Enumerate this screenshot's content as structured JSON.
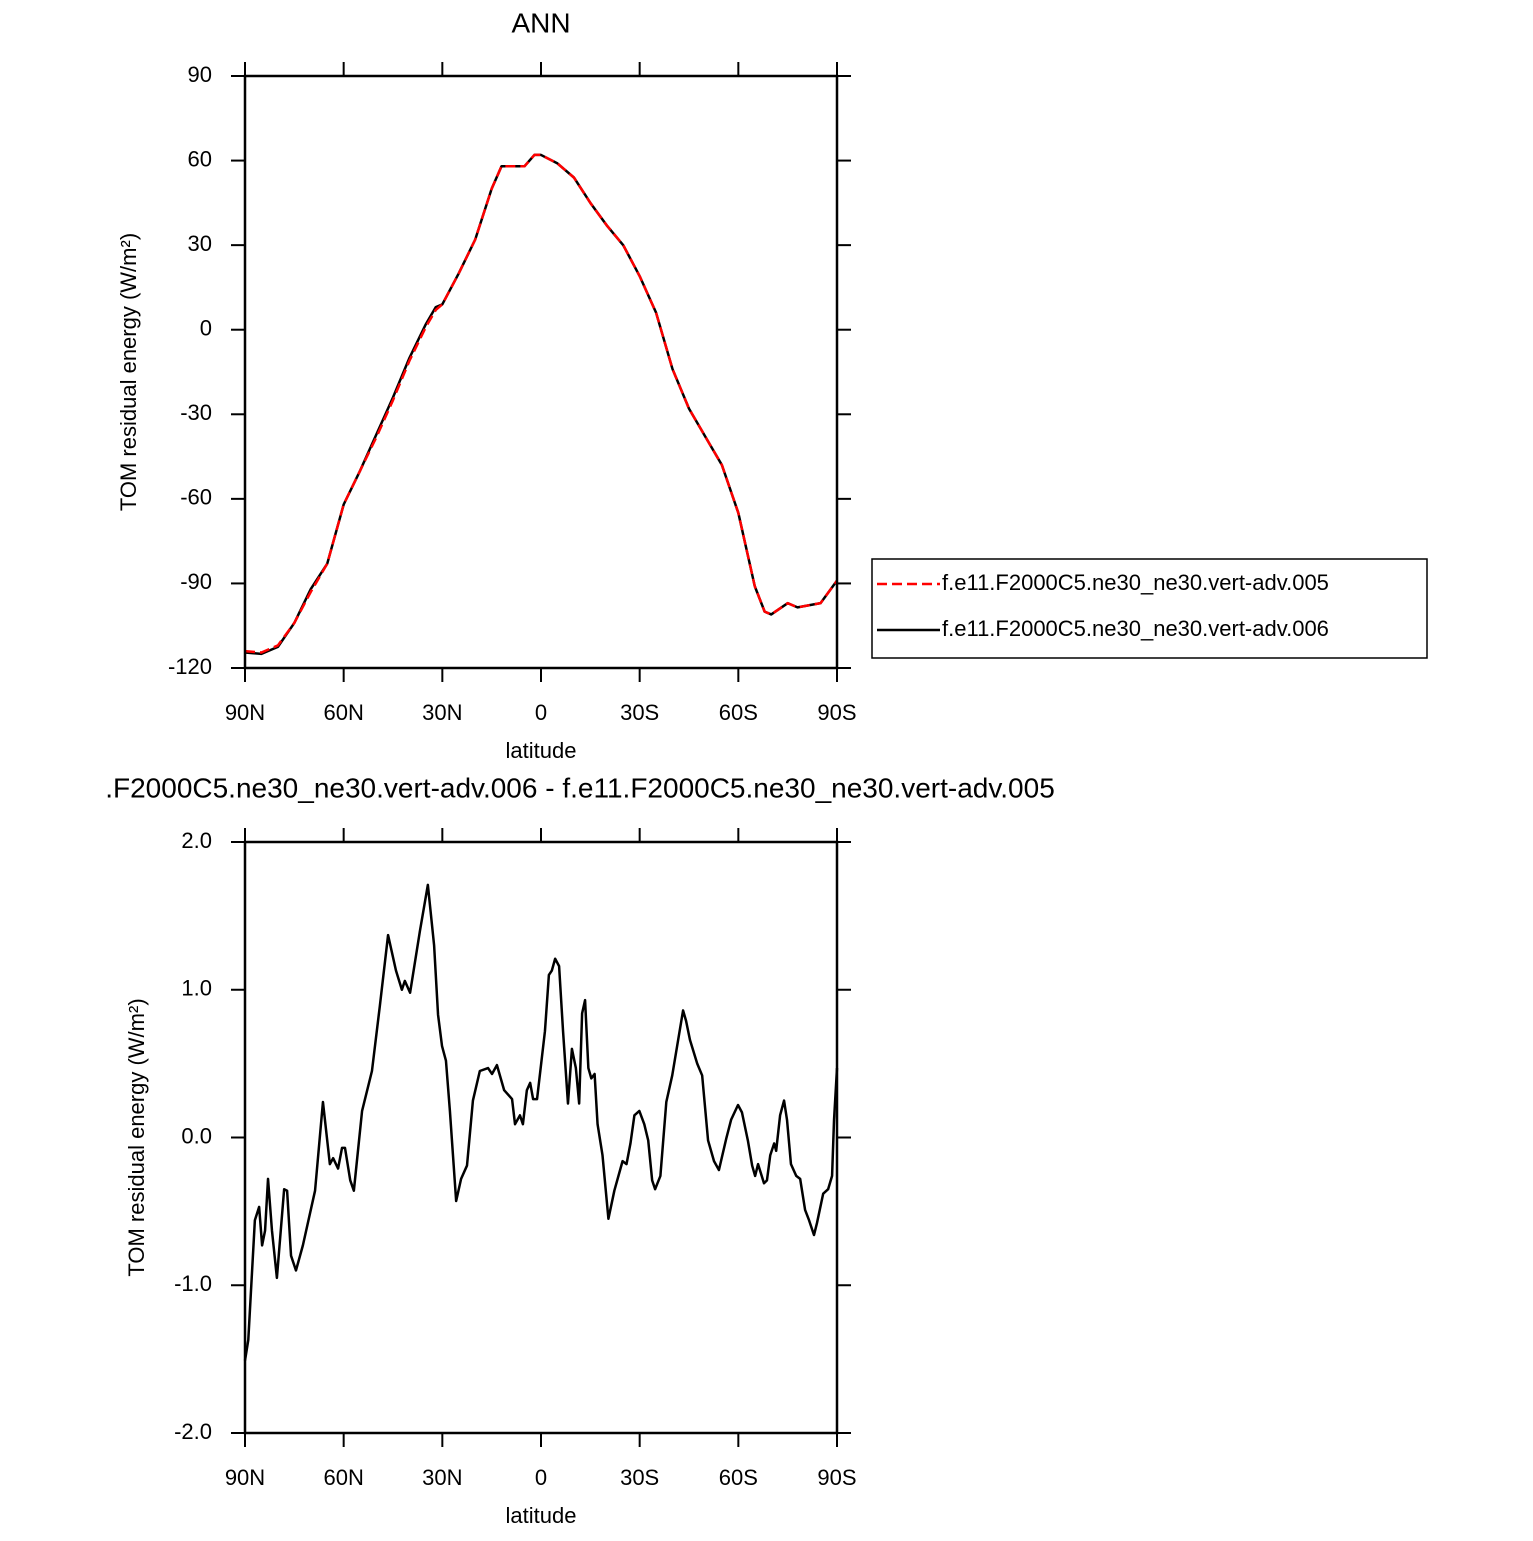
{
  "chart_data": [
    {
      "type": "line",
      "title": "ANN",
      "xlabel": "latitude",
      "ylabel": "TOM residual energy (W/m²)",
      "xlim": [
        90,
        -90
      ],
      "xticks": [
        {
          "value": 90,
          "label": "90N"
        },
        {
          "value": 60,
          "label": "60N"
        },
        {
          "value": 30,
          "label": "30N"
        },
        0,
        {
          "value": -30,
          "label": "30S"
        },
        {
          "value": -60,
          "label": "60S"
        },
        {
          "value": -90,
          "label": "90S"
        }
      ],
      "ylim": [
        -120,
        90
      ],
      "yticks": [
        90,
        60,
        30,
        0,
        -30,
        -60,
        -90,
        -120
      ],
      "legend": "right",
      "x": [
        90,
        85,
        80,
        75,
        70,
        65,
        60,
        55,
        50,
        45,
        40,
        35,
        32,
        30,
        25,
        20,
        15,
        12,
        10,
        5,
        2,
        0,
        -5,
        -10,
        -15,
        -20,
        -25,
        -30,
        -35,
        -40,
        -45,
        -50,
        -55,
        -60,
        -65,
        -68,
        -70,
        -75,
        -78,
        -85,
        -90
      ],
      "series": [
        {
          "name": "f.e11.F2000C5.ne30_ne30.vert-adv.005",
          "color": "#ff0000",
          "dash": "dashed",
          "values": [
            -114,
            -114.5,
            -112,
            -104,
            -93,
            -83,
            -62,
            -50,
            -38,
            -25,
            -11,
            1,
            7,
            9,
            20,
            32,
            50,
            58,
            58,
            58,
            62,
            62,
            59,
            54,
            45,
            37,
            30,
            19,
            6,
            -14,
            -28,
            -38,
            -48,
            -65,
            -91,
            -100,
            -101,
            -97,
            -98.5,
            -97,
            -89
          ]
        },
        {
          "name": "f.e11.F2000C5.ne30_ne30.vert-adv.006",
          "color": "#000000",
          "dash": "solid",
          "values": [
            -114.5,
            -115,
            -112.5,
            -104,
            -92,
            -83,
            -62,
            -50,
            -37,
            -24,
            -10,
            2,
            8,
            9,
            20,
            32,
            50,
            58,
            58,
            58,
            62,
            62,
            59,
            54,
            45,
            37,
            30,
            19,
            6,
            -14,
            -28,
            -38,
            -48,
            -65,
            -91,
            -100,
            -101,
            -97,
            -98.5,
            -97,
            -89
          ]
        }
      ]
    },
    {
      "type": "line",
      "title": ".F2000C5.ne30_ne30.vert-adv.006 - f.e11.F2000C5.ne30_ne30.vert-adv.005",
      "xlabel": "latitude",
      "ylabel": "TOM residual energy (W/m²)",
      "xlim": [
        90,
        -90
      ],
      "xticks": [
        {
          "value": 90,
          "label": "90N"
        },
        {
          "value": 60,
          "label": "60N"
        },
        {
          "value": 30,
          "label": "30N"
        },
        0,
        {
          "value": -30,
          "label": "30S"
        },
        {
          "value": -60,
          "label": "60S"
        },
        {
          "value": -90,
          "label": "90S"
        }
      ],
      "ylim": [
        -2,
        2
      ],
      "yticks": [
        {
          "value": 2,
          "label": "2.0"
        },
        {
          "value": 1,
          "label": "1.0"
        },
        {
          "value": 0,
          "label": "0.0"
        },
        {
          "value": -1,
          "label": "-1.0"
        },
        {
          "value": -2,
          "label": "-2.0"
        }
      ],
      "x": [
        90,
        89,
        87,
        85.7,
        84.8,
        83.9,
        83,
        81.8,
        80.3,
        78.1,
        77.2,
        76,
        74.5,
        72.4,
        68.7,
        66.3,
        64.2,
        63.2,
        61.7,
        60.5,
        59.6,
        58,
        56.9,
        54.4,
        51.4,
        49,
        46.5,
        44.1,
        42.3,
        41.4,
        39.8,
        36.8,
        34.4,
        32.5,
        31.3,
        30.1,
        28.9,
        27.7,
        25.8,
        24.3,
        22.5,
        20.7,
        18.6,
        16.1,
        14.9,
        13.4,
        11.2,
        8.8,
        7.9,
        6.4,
        5.5,
        4.3,
        3.3,
        2.4,
        1.2,
        -1.2,
        -2.4,
        -3.3,
        -4.3,
        -5.5,
        -6.7,
        -8.2,
        -9.4,
        -10.6,
        -11.6,
        -12.5,
        -13.4,
        -14.4,
        -15.3,
        -16.3,
        -17.2,
        -18.7,
        -20.5,
        -22.3,
        -24.8,
        -26,
        -27.2,
        -28.4,
        -29.9,
        -31.4,
        -32.6,
        -33.8,
        -34.7,
        -36.3,
        -38.1,
        -39.9,
        -41.7,
        -43.2,
        -44.1,
        -45.3,
        -47.5,
        -49,
        -50.8,
        -52.6,
        -54.1,
        -56.3,
        -57.8,
        -59.9,
        -61.1,
        -62.9,
        -64.2,
        -65.1,
        -66,
        -67.8,
        -68.7,
        -69.7,
        -70.9,
        -71.5,
        -72.7,
        -73.9,
        -74.8,
        -76,
        -77.6,
        -78.8,
        -80.3,
        -81.5,
        -83,
        -83.9,
        -85.8,
        -87.3,
        -88.5,
        -89.1,
        -90
      ],
      "series": [
        {
          "color": "#000000",
          "dash": "solid",
          "values": [
            -1.51,
            -1.37,
            -0.56,
            -0.47,
            -0.73,
            -0.63,
            -0.28,
            -0.63,
            -0.95,
            -0.35,
            -0.36,
            -0.8,
            -0.9,
            -0.73,
            -0.36,
            0.24,
            -0.18,
            -0.14,
            -0.21,
            -0.07,
            -0.07,
            -0.29,
            -0.36,
            0.18,
            0.45,
            0.89,
            1.37,
            1.13,
            1.0,
            1.06,
            0.98,
            1.4,
            1.71,
            1.3,
            0.83,
            0.62,
            0.52,
            0.18,
            -0.43,
            -0.28,
            -0.19,
            0.25,
            0.45,
            0.47,
            0.43,
            0.49,
            0.32,
            0.26,
            0.09,
            0.15,
            0.09,
            0.32,
            0.37,
            0.26,
            0.26,
            0.72,
            1.1,
            1.13,
            1.21,
            1.16,
            0.72,
            0.23,
            0.6,
            0.47,
            0.23,
            0.84,
            0.93,
            0.47,
            0.4,
            0.43,
            0.09,
            -0.12,
            -0.55,
            -0.36,
            -0.16,
            -0.18,
            -0.04,
            0.15,
            0.18,
            0.09,
            -0.02,
            -0.29,
            -0.35,
            -0.26,
            0.24,
            0.42,
            0.66,
            0.86,
            0.79,
            0.66,
            0.5,
            0.42,
            -0.02,
            -0.16,
            -0.22,
            -0.01,
            0.12,
            0.22,
            0.17,
            -0.02,
            -0.19,
            -0.26,
            -0.18,
            -0.31,
            -0.29,
            -0.12,
            -0.04,
            -0.09,
            0.15,
            0.25,
            0.12,
            -0.18,
            -0.26,
            -0.28,
            -0.49,
            -0.56,
            -0.66,
            -0.58,
            -0.38,
            -0.35,
            -0.26,
            0.12,
            0.47
          ]
        }
      ]
    }
  ]
}
